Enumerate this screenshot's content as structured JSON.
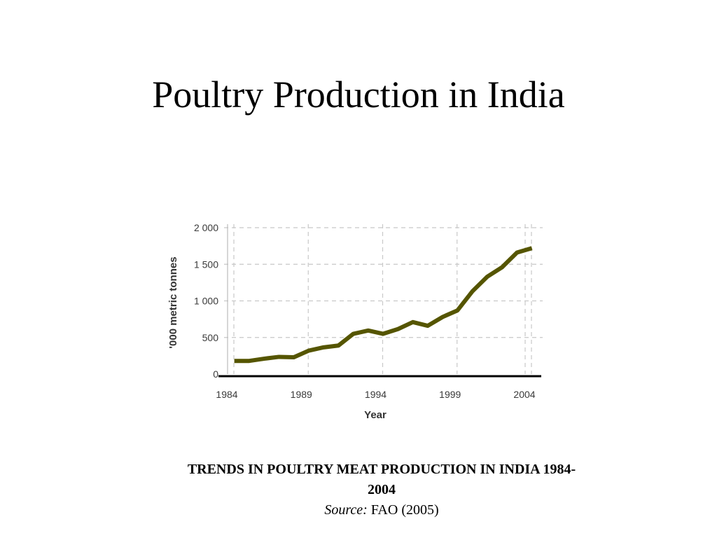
{
  "slide": {
    "title": "Poultry Production in India"
  },
  "caption": {
    "title": "TRENDS IN POULTRY MEAT PRODUCTION IN INDIA 1984-2004",
    "source_label": "Source:",
    "source_text": " FAO (2005)"
  },
  "chart_data": {
    "type": "line",
    "title": "",
    "xlabel": "Year",
    "ylabel": "'000 metric tonnes",
    "xlim": [
      1984,
      2004.5
    ],
    "ylim": [
      0,
      2000
    ],
    "x_ticks": [
      1984,
      1989,
      1994,
      1999,
      2004
    ],
    "x_tick_labels": [
      "1984",
      "1989",
      "1994",
      "1999",
      "2004"
    ],
    "y_ticks": [
      0,
      500,
      1000,
      1500,
      2000
    ],
    "y_tick_labels": [
      "0",
      "500",
      "1 000",
      "1 500",
      "2 000"
    ],
    "grid": true,
    "line_color": "#555500",
    "series": [
      {
        "x": [
          1984.5,
          1985.5,
          1986.5,
          1987.5,
          1988.5,
          1989.5,
          1990.5,
          1991.5,
          1992.5,
          1993.5,
          1994.5,
          1995.5,
          1996.5,
          1997.5,
          1998.5,
          1999.5,
          2000.5,
          2001.5,
          2002.5,
          2003.5,
          2004.5
        ],
        "y": [
          180,
          180,
          210,
          235,
          230,
          320,
          365,
          390,
          550,
          595,
          550,
          615,
          710,
          660,
          780,
          870,
          1130,
          1330,
          1460,
          1660,
          1720
        ]
      }
    ]
  }
}
